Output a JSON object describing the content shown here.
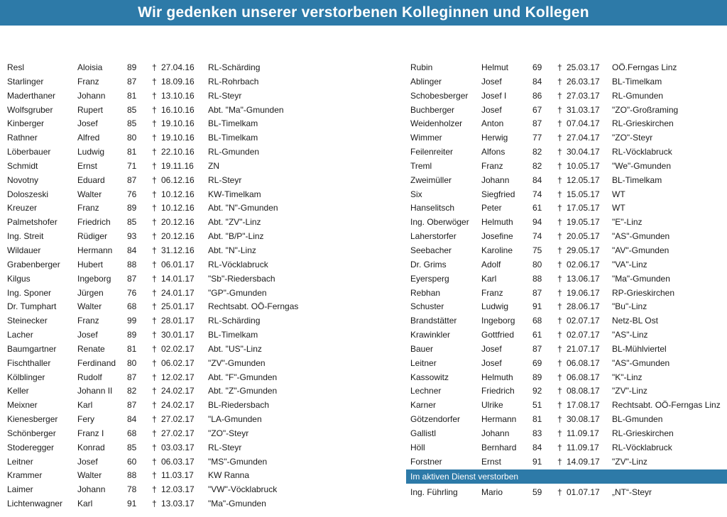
{
  "title": "Wir gedenken unserer verstorbenen Kolleginnen und Kollegen",
  "cross_symbol": "†",
  "left_column": [
    {
      "last": "Resl",
      "first": "Aloisia",
      "age": "89",
      "date": "27.04.16",
      "unit": "RL-Schärding"
    },
    {
      "last": "Starlinger",
      "first": "Franz",
      "age": "87",
      "date": "18.09.16",
      "unit": "RL-Rohrbach"
    },
    {
      "last": "Maderthaner",
      "first": "Johann",
      "age": "81",
      "date": "13.10.16",
      "unit": "RL-Steyr"
    },
    {
      "last": "Wolfsgruber",
      "first": "Rupert",
      "age": "85",
      "date": "16.10.16",
      "unit": "Abt. \"Ma\"-Gmunden"
    },
    {
      "last": "Kinberger",
      "first": "Josef",
      "age": "85",
      "date": "19.10.16",
      "unit": "BL-Timelkam"
    },
    {
      "last": "Rathner",
      "first": "Alfred",
      "age": "80",
      "date": "19.10.16",
      "unit": "BL-Timelkam"
    },
    {
      "last": "Löberbauer",
      "first": "Ludwig",
      "age": "81",
      "date": "22.10.16",
      "unit": "RL-Gmunden"
    },
    {
      "last": "Schmidt",
      "first": "Ernst",
      "age": "71",
      "date": "19.11.16",
      "unit": "ZN"
    },
    {
      "last": "Novotny",
      "first": "Eduard",
      "age": "87",
      "date": "06.12.16",
      "unit": "RL-Steyr"
    },
    {
      "last": "Doloszeski",
      "first": "Walter",
      "age": "76",
      "date": "10.12.16",
      "unit": "KW-Timelkam"
    },
    {
      "last": "Kreuzer",
      "first": "Franz",
      "age": "89",
      "date": "10.12.16",
      "unit": "Abt. \"N\"-Gmunden"
    },
    {
      "last": "Palmetshofer",
      "first": "Friedrich",
      "age": "85",
      "date": "20.12.16",
      "unit": "Abt. \"ZV\"-Linz"
    },
    {
      "last": "Ing. Streit",
      "first": "Rüdiger",
      "age": "93",
      "date": "20.12.16",
      "unit": "Abt. \"B/P\"-Linz"
    },
    {
      "last": "Wildauer",
      "first": "Hermann",
      "age": "84",
      "date": "31.12.16",
      "unit": "Abt. \"N\"-Linz"
    },
    {
      "last": "Grabenberger",
      "first": "Hubert",
      "age": "88",
      "date": "06.01.17",
      "unit": "RL-Vöcklabruck"
    },
    {
      "last": "Kilgus",
      "first": "Ingeborg",
      "age": "87",
      "date": "14.01.17",
      "unit": "\"Sb\"-Riedersbach"
    },
    {
      "last": "Ing. Sponer",
      "first": "Jürgen",
      "age": "76",
      "date": "24.01.17",
      "unit": "\"GP\"-Gmunden"
    },
    {
      "last": "Dr. Tumphart",
      "first": "Walter",
      "age": "68",
      "date": "25.01.17",
      "unit": "Rechtsabt. OÖ-Ferngas"
    },
    {
      "last": "Steinecker",
      "first": "Franz",
      "age": "99",
      "date": "28.01.17",
      "unit": "RL-Schärding"
    },
    {
      "last": "Lacher",
      "first": "Josef",
      "age": "89",
      "date": "30.01.17",
      "unit": "BL-Timelkam"
    },
    {
      "last": "Baumgartner",
      "first": "Renate",
      "age": "81",
      "date": "02.02.17",
      "unit": "Abt. \"US\"-Linz"
    },
    {
      "last": "Fischthaller",
      "first": "Ferdinand",
      "age": "80",
      "date": "06.02.17",
      "unit": "\"ZV\"-Gmunden"
    },
    {
      "last": "Kölblinger",
      "first": "Rudolf",
      "age": "87",
      "date": "12.02.17",
      "unit": "Abt. \"F\"-Gmunden"
    },
    {
      "last": "Keller",
      "first": "Johann II",
      "age": "82",
      "date": "24.02.17",
      "unit": "Abt. \"Z\"-Gmunden"
    },
    {
      "last": "Meixner",
      "first": "Karl",
      "age": "87",
      "date": "24.02.17",
      "unit": "BL-Riedersbach"
    },
    {
      "last": "Kienesberger",
      "first": "Fery",
      "age": "84",
      "date": "27.02.17",
      "unit": "\"LA-Gmunden"
    },
    {
      "last": "Schönberger",
      "first": "Franz I",
      "age": "68",
      "date": "27.02.17",
      "unit": "\"ZO\"-Steyr"
    },
    {
      "last": "Stoderegger",
      "first": "Konrad",
      "age": "85",
      "date": "03.03.17",
      "unit": "RL-Steyr"
    },
    {
      "last": "Leitner",
      "first": "Josef",
      "age": "60",
      "date": "06.03.17",
      "unit": "\"MS\"-Gmunden"
    },
    {
      "last": "Krammer",
      "first": "Walter",
      "age": "88",
      "date": "11.03.17",
      "unit": "KW Ranna"
    },
    {
      "last": "Laimer",
      "first": "Johann",
      "age": "78",
      "date": "12.03.17",
      "unit": "\"VW\"-Vöcklabruck"
    },
    {
      "last": "Lichtenwagner",
      "first": "Karl",
      "age": "91",
      "date": "13.03.17",
      "unit": "\"Ma\"-Gmunden"
    }
  ],
  "right_column": [
    {
      "last": "Rubin",
      "first": "Helmut",
      "age": "69",
      "date": "25.03.17",
      "unit": "OÖ.Ferngas Linz"
    },
    {
      "last": "Ablinger",
      "first": "Josef",
      "age": "84",
      "date": "26.03.17",
      "unit": "BL-Timelkam"
    },
    {
      "last": "Schobesberger",
      "first": "Josef I",
      "age": "86",
      "date": "27.03.17",
      "unit": "RL-Gmunden"
    },
    {
      "last": "Buchberger",
      "first": "Josef",
      "age": "67",
      "date": "31.03.17",
      "unit": "\"ZO\"-Großraming"
    },
    {
      "last": "Weidenholzer",
      "first": "Anton",
      "age": "87",
      "date": "07.04.17",
      "unit": "RL-Grieskirchen"
    },
    {
      "last": "Wimmer",
      "first": "Herwig",
      "age": "77",
      "date": "27.04.17",
      "unit": "\"ZO\"-Steyr"
    },
    {
      "last": "Feilenreiter",
      "first": "Alfons",
      "age": "82",
      "date": "30.04.17",
      "unit": "RL-Vöcklabruck"
    },
    {
      "last": "Treml",
      "first": "Franz",
      "age": "82",
      "date": "10.05.17",
      "unit": "\"We\"-Gmunden"
    },
    {
      "last": "Zweimüller",
      "first": "Johann",
      "age": "84",
      "date": "12.05.17",
      "unit": "BL-Timelkam"
    },
    {
      "last": "Six",
      "first": "Siegfried",
      "age": "74",
      "date": "15.05.17",
      "unit": "WT"
    },
    {
      "last": "Hanselitsch",
      "first": "Peter",
      "age": "61",
      "date": "17.05.17",
      "unit": "WT"
    },
    {
      "last": "Ing. Oberwöger",
      "first": "Helmuth",
      "age": "94",
      "date": "19.05.17",
      "unit": "\"E\"-Linz"
    },
    {
      "last": "Laherstorfer",
      "first": "Josefine",
      "age": "74",
      "date": "20.05.17",
      "unit": "\"AS\"-Gmunden"
    },
    {
      "last": "Seebacher",
      "first": "Karoline",
      "age": "75",
      "date": "29.05.17",
      "unit": "\"AV\"-Gmunden"
    },
    {
      "last": "Dr. Grims",
      "first": "Adolf",
      "age": "80",
      "date": "02.06.17",
      "unit": "\"VA\"-Linz"
    },
    {
      "last": "Eyersperg",
      "first": "Karl",
      "age": "88",
      "date": "13.06.17",
      "unit": "\"Ma\"-Gmunden"
    },
    {
      "last": "Rebhan",
      "first": "Franz",
      "age": "87",
      "date": "19.06.17",
      "unit": "RP-Grieskirchen"
    },
    {
      "last": "Schuster",
      "first": "Ludwig",
      "age": "91",
      "date": "28.06.17",
      "unit": "\"Bu\"-Linz"
    },
    {
      "last": "Brandstätter",
      "first": "Ingeborg",
      "age": "68",
      "date": "02.07.17",
      "unit": "Netz-BL Ost"
    },
    {
      "last": "Krawinkler",
      "first": "Gottfried",
      "age": "61",
      "date": "02.07.17",
      "unit": "\"AS\"-Linz"
    },
    {
      "last": "Bauer",
      "first": "Josef",
      "age": "87",
      "date": "21.07.17",
      "unit": "BL-Mühlviertel"
    },
    {
      "last": "Leitner",
      "first": "Josef",
      "age": "69",
      "date": "06.08.17",
      "unit": "\"AS\"-Gmunden"
    },
    {
      "last": "Kassowitz",
      "first": "Helmuth",
      "age": "89",
      "date": "06.08.17",
      "unit": "\"K\"-Linz"
    },
    {
      "last": "Lechner",
      "first": "Friedrich",
      "age": "92",
      "date": "08.08.17",
      "unit": "\"ZV\"-Linz"
    },
    {
      "last": "Karner",
      "first": "Ulrike",
      "age": "51",
      "date": "17.08.17",
      "unit": "Rechtsabt. OÖ-Ferngas Linz"
    },
    {
      "last": "Götzendorfer",
      "first": "Hermann",
      "age": "81",
      "date": "30.08.17",
      "unit": "BL-Gmunden"
    },
    {
      "last": "Gallistl",
      "first": "Johann",
      "age": "83",
      "date": "11.09.17",
      "unit": "RL-Grieskirchen"
    },
    {
      "last": "Höll",
      "first": "Bernhard",
      "age": "84",
      "date": "11.09.17",
      "unit": "RL-Vöcklabruck"
    },
    {
      "last": "Forstner",
      "first": "Ernst",
      "age": "91",
      "date": "14.09.17",
      "unit": "\"ZV\"-Linz"
    }
  ],
  "active_service_heading": "Im aktiven Dienst verstorben",
  "active_service": [
    {
      "last": "Ing. Führling",
      "first": "Mario",
      "age": "59",
      "date": "01.07.17",
      "unit": "„NT“-Steyr"
    }
  ],
  "colors": {
    "accent": "#2d7aa8",
    "text": "#1b1b1b"
  }
}
